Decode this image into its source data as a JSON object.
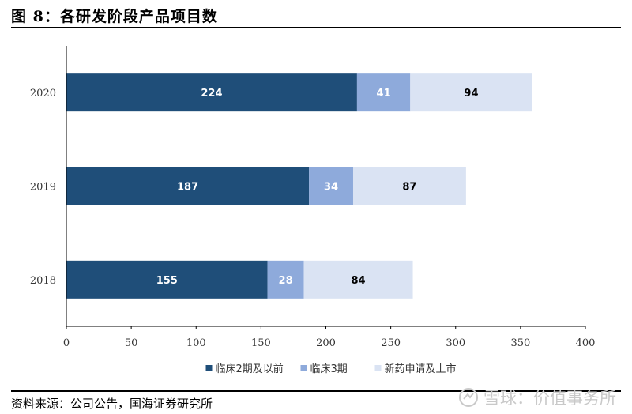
{
  "figure_title": "图 8：各研发阶段产品项目数",
  "source": "资料来源：公司公告，国海证券研究所",
  "watermark": "雪球：价值事务所",
  "chart_data": {
    "type": "bar",
    "orientation": "horizontal",
    "stacked": true,
    "categories": [
      "2020",
      "2019",
      "2018"
    ],
    "series": [
      {
        "name": "临床2期及以前",
        "values": [
          224,
          187,
          155
        ],
        "color": "#1f4e79",
        "label_color": "#ffffff"
      },
      {
        "name": "临床3期",
        "values": [
          41,
          34,
          28
        ],
        "color": "#8eaadb",
        "label_color": "#ffffff"
      },
      {
        "name": "新药申请及上市",
        "values": [
          94,
          87,
          84
        ],
        "color": "#dae3f3",
        "label_color": "#000000"
      }
    ],
    "xlim": [
      0,
      400
    ],
    "xticks": [
      0,
      50,
      100,
      150,
      200,
      250,
      300,
      350,
      400
    ],
    "grid": false,
    "legend_position": "bottom"
  }
}
